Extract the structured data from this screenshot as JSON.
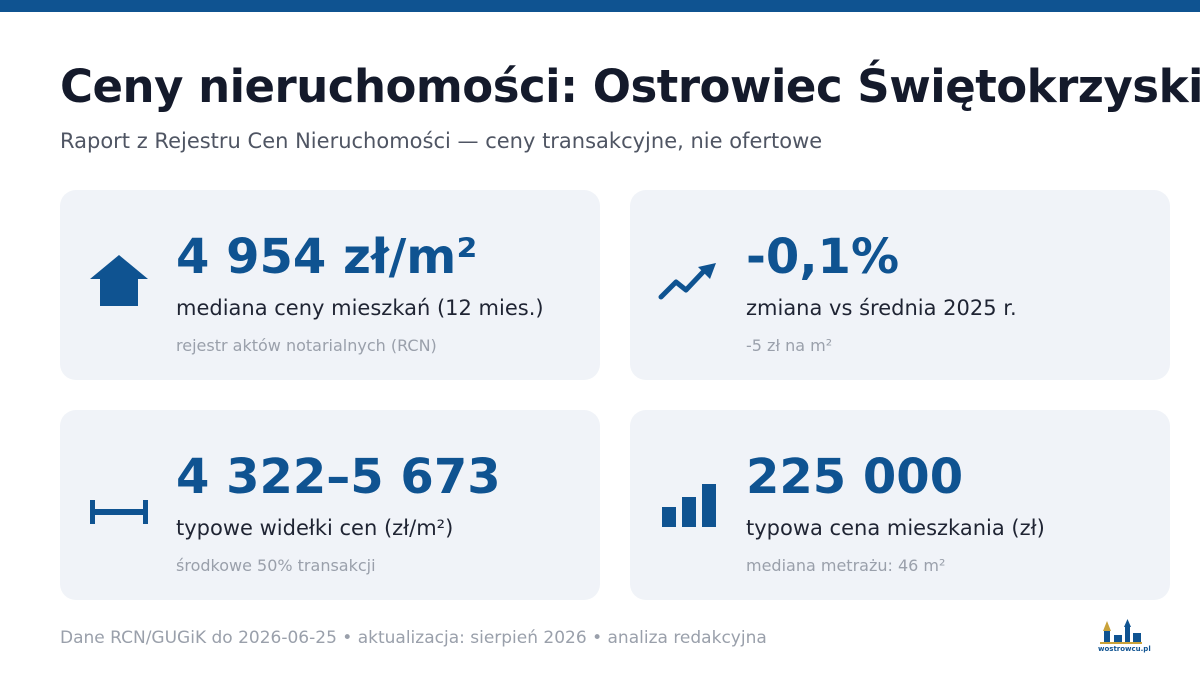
{
  "header": {
    "title": "Ceny nieruchomości: Ostrowiec Świętokrzyski",
    "subtitle": "Raport z Rejestru Cen Nieruchomości — ceny transakcyjne, nie ofertowe"
  },
  "cards": [
    {
      "icon": "house-icon",
      "value": "4 954 zł/m²",
      "label": "mediana ceny mieszkań (12 mies.)",
      "note": "rejestr aktów notarialnych (RCN)"
    },
    {
      "icon": "trend-up-icon",
      "value": "-0,1%",
      "label": "zmiana vs średnia 2025 r.",
      "note": "-5 zł na m²"
    },
    {
      "icon": "range-icon",
      "value": "4 322–5 673",
      "label": "typowe widełki cen (zł/m²)",
      "note": "środkowe 50% transakcji"
    },
    {
      "icon": "bar-chart-icon",
      "value": "225 000",
      "label": "typowa cena mieszkania (zł)",
      "note": "mediana metrażu: 46 m²"
    }
  ],
  "footer": {
    "text": "Dane RCN/GUGiK do 2026-06-25 • aktualizacja: sierpień 2026 • analiza redakcyjna"
  },
  "logo": {
    "text": "wostrowcu.pl"
  },
  "colors": {
    "accent": "#0f5391",
    "card_background": "#f0f3f8",
    "title": "#141a2b",
    "muted": "#9aa0ab"
  }
}
